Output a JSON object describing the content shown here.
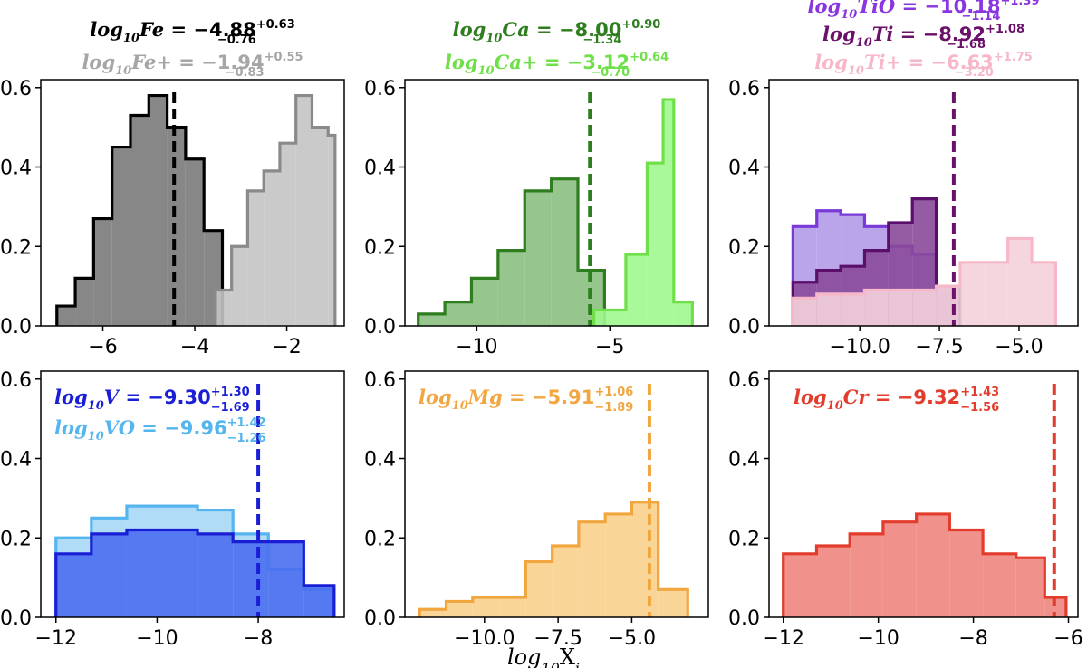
{
  "figure": {
    "xlabel_main": "log",
    "xlabel_sub": "10",
    "xlabel_tail": "X",
    "xlabel_idx": "i"
  },
  "chart_data": [
    {
      "id": "fe",
      "type": "histogram",
      "ylim": [
        0,
        0.62
      ],
      "xlim": [
        -7.35,
        -0.75
      ],
      "xticks": [
        -6,
        -4,
        -2
      ],
      "yticks": [
        0.0,
        0.2,
        0.4,
        0.6
      ],
      "annotations": [
        {
          "prefix": "log",
          "sub": "10",
          "species": "Fe",
          "eq": " = ",
          "value": "−4.88",
          "plus": "+0.63",
          "minus": "−0.76",
          "color": "#000000"
        },
        {
          "prefix": "log",
          "sub": "10",
          "species": "Fe+",
          "eq": " = ",
          "value": "−1.94",
          "plus": "+0.55",
          "minus": "−0.83",
          "color": "#a6a6a6"
        }
      ],
      "series": [
        {
          "name": "Fe",
          "fill": "#7a7a7a",
          "stroke": "#000000",
          "edges": [
            -7.0,
            -6.6,
            -6.2,
            -5.8,
            -5.4,
            -5.0,
            -4.6,
            -4.2,
            -3.8,
            -3.4
          ],
          "values": [
            0.05,
            0.12,
            0.27,
            0.45,
            0.53,
            0.58,
            0.5,
            0.42,
            0.24
          ]
        },
        {
          "name": "Fe+",
          "fill": "#c4c4c4",
          "stroke": "#8a8a8a",
          "edges": [
            -3.55,
            -3.2,
            -2.85,
            -2.5,
            -2.15,
            -1.8,
            -1.45,
            -1.1,
            -0.95
          ],
          "values": [
            0.09,
            0.2,
            0.34,
            0.39,
            0.46,
            0.58,
            0.5,
            0.48
          ]
        }
      ],
      "markers": [
        {
          "x": -4.45,
          "color": "#000000"
        }
      ]
    },
    {
      "id": "ca",
      "type": "histogram",
      "ylim": [
        0,
        0.62
      ],
      "xlim": [
        -12.7,
        -1.3
      ],
      "xticks": [
        -10,
        -5
      ],
      "yticks": [
        0.0,
        0.2,
        0.4,
        0.6
      ],
      "annotations": [
        {
          "prefix": "log",
          "sub": "10",
          "species": "Ca",
          "eq": " = ",
          "value": "−8.00",
          "plus": "+0.90",
          "minus": "−1.34",
          "color": "#2e7d1e"
        },
        {
          "prefix": "log",
          "sub": "10",
          "species": "Ca+",
          "eq": " = ",
          "value": "−3.12",
          "plus": "+0.64",
          "minus": "−0.70",
          "color": "#6fe04a"
        }
      ],
      "series": [
        {
          "name": "Ca",
          "fill": "#8cbf82",
          "stroke": "#2e7d1e",
          "edges": [
            -12.2,
            -11.2,
            -10.2,
            -9.2,
            -8.2,
            -7.2,
            -6.2,
            -5.2
          ],
          "values": [
            0.03,
            0.06,
            0.12,
            0.19,
            0.34,
            0.37,
            0.14
          ]
        },
        {
          "name": "Ca+",
          "fill": "#a0f890",
          "stroke": "#6fe04a",
          "edges": [
            -5.6,
            -4.4,
            -3.6,
            -3.0,
            -2.6,
            -1.9
          ],
          "values": [
            0.04,
            0.18,
            0.41,
            0.57,
            0.06
          ]
        }
      ],
      "markers": [
        {
          "x": -5.75,
          "color": "#2e7d1e"
        }
      ]
    },
    {
      "id": "ti",
      "type": "histogram",
      "ylim": [
        0,
        0.62
      ],
      "xlim": [
        -12.85,
        -3.15
      ],
      "xticks": [
        -10.0,
        -7.5,
        -5.0
      ],
      "yticks": [
        0.0,
        0.2,
        0.4,
        0.6
      ],
      "annotations": [
        {
          "prefix": "log",
          "sub": "10",
          "species": "TiO",
          "eq": " = ",
          "value": "−10.18",
          "plus": "+1.39",
          "minus": "−1.14",
          "color": "#8a36e0"
        },
        {
          "prefix": "log",
          "sub": "10",
          "species": "Ti",
          "eq": " = ",
          "value": "−8.92",
          "plus": "+1.08",
          "minus": "−1.68",
          "color": "#6a116a"
        },
        {
          "prefix": "log",
          "sub": "10",
          "species": "Ti+",
          "eq": " = ",
          "value": "−6.63",
          "plus": "+1.75",
          "minus": "−3.20",
          "color": "#f6b8c8"
        }
      ],
      "series": [
        {
          "name": "TiO",
          "fill": "#b39ae8",
          "stroke": "#7a3ad8",
          "edges": [
            -12.1,
            -11.35,
            -10.6,
            -9.85,
            -9.1,
            -8.35,
            -7.6,
            -6.85
          ],
          "values": [
            0.25,
            0.29,
            0.28,
            0.25,
            0.2,
            0.18,
            0.08
          ]
        },
        {
          "name": "Ti",
          "fill": "#8a4a9a",
          "stroke": "#5a0f6a",
          "edges": [
            -12.1,
            -11.35,
            -10.6,
            -9.85,
            -9.1,
            -8.35,
            -7.6,
            -6.85
          ],
          "values": [
            0.11,
            0.14,
            0.15,
            0.19,
            0.26,
            0.32,
            0.1
          ]
        },
        {
          "name": "Ti+",
          "fill": "#f4d2dc",
          "stroke": "#f6b8c8",
          "edges": [
            -12.1,
            -11.35,
            -10.6,
            -9.85,
            -9.1,
            -8.35,
            -7.6,
            -6.85,
            -6.1,
            -5.35,
            -4.6,
            -3.85
          ],
          "values": [
            0.07,
            0.08,
            0.08,
            0.09,
            0.09,
            0.09,
            0.1,
            0.16,
            0.16,
            0.22,
            0.16
          ]
        }
      ],
      "markers": [
        {
          "x": -7.05,
          "color": "#6a116a"
        }
      ]
    },
    {
      "id": "v",
      "type": "histogram",
      "ylim": [
        0,
        0.62
      ],
      "xlim": [
        -12.3,
        -6.3
      ],
      "xticks": [
        -12,
        -10,
        -8
      ],
      "yticks": [
        0.0,
        0.2,
        0.4,
        0.6
      ],
      "annotations": [
        {
          "prefix": "log",
          "sub": "10",
          "species": "V",
          "eq": " = ",
          "value": "−9.30",
          "plus": "+1.30",
          "minus": "−1.69",
          "color": "#1a1fd6"
        },
        {
          "prefix": "log",
          "sub": "10",
          "species": "VO",
          "eq": " = ",
          "value": "−9.96",
          "plus": "+1.42",
          "minus": "−1.26",
          "color": "#55b5ee"
        }
      ],
      "series": [
        {
          "name": "VO",
          "fill": "#a8d8f6",
          "stroke": "#55b5ee",
          "edges": [
            -12.0,
            -11.3,
            -10.6,
            -9.9,
            -9.2,
            -8.5,
            -7.8,
            -7.1,
            -6.5
          ],
          "values": [
            0.2,
            0.25,
            0.28,
            0.28,
            0.27,
            0.21,
            0.12,
            0.07
          ]
        },
        {
          "name": "V",
          "fill": "#4a6ef0",
          "stroke": "#1a1fd6",
          "edges": [
            -12.0,
            -11.3,
            -10.6,
            -9.9,
            -9.2,
            -8.5,
            -7.8,
            -7.1,
            -6.5
          ],
          "values": [
            0.16,
            0.21,
            0.22,
            0.22,
            0.21,
            0.19,
            0.19,
            0.08
          ]
        }
      ],
      "markers": [
        {
          "x": -8.0,
          "color": "#1a1fd6"
        }
      ]
    },
    {
      "id": "mg",
      "type": "histogram",
      "ylim": [
        0,
        0.62
      ],
      "xlim": [
        -12.7,
        -2.4
      ],
      "xticks": [
        -10.0,
        -7.5,
        -5.0
      ],
      "yticks": [
        0.0,
        0.2,
        0.4,
        0.6
      ],
      "annotations": [
        {
          "prefix": "log",
          "sub": "10",
          "species": "Mg",
          "eq": " = ",
          "value": "−5.91",
          "plus": "+1.06",
          "minus": "−1.89",
          "color": "#f2a640"
        }
      ],
      "series": [
        {
          "name": "Mg",
          "fill": "#f8d28c",
          "stroke": "#f2a640",
          "edges": [
            -12.2,
            -11.3,
            -10.4,
            -9.5,
            -8.6,
            -7.7,
            -6.8,
            -5.9,
            -5.0,
            -4.1,
            -3.1
          ],
          "values": [
            0.02,
            0.04,
            0.05,
            0.05,
            0.14,
            0.18,
            0.24,
            0.26,
            0.29,
            0.07
          ]
        }
      ],
      "markers": [
        {
          "x": -4.4,
          "color": "#f2a640"
        }
      ]
    },
    {
      "id": "cr",
      "type": "histogram",
      "ylim": [
        0,
        0.62
      ],
      "xlim": [
        -12.3,
        -5.8
      ],
      "xticks": [
        -12,
        -10,
        -8,
        -6
      ],
      "yticks": [
        0.0,
        0.2,
        0.4,
        0.6
      ],
      "annotations": [
        {
          "prefix": "log",
          "sub": "10",
          "species": "Cr",
          "eq": " = ",
          "value": "−9.32",
          "plus": "+1.43",
          "minus": "−1.56",
          "color": "#e23c2c"
        }
      ],
      "series": [
        {
          "name": "Cr",
          "fill": "#f0857e",
          "stroke": "#e23c2c",
          "edges": [
            -12.0,
            -11.3,
            -10.6,
            -9.9,
            -9.2,
            -8.5,
            -7.8,
            -7.1,
            -6.5,
            -6.05
          ],
          "values": [
            0.16,
            0.18,
            0.21,
            0.24,
            0.26,
            0.22,
            0.16,
            0.15,
            0.05
          ]
        }
      ],
      "markers": [
        {
          "x": -6.3,
          "color": "#e23c2c"
        }
      ]
    }
  ]
}
